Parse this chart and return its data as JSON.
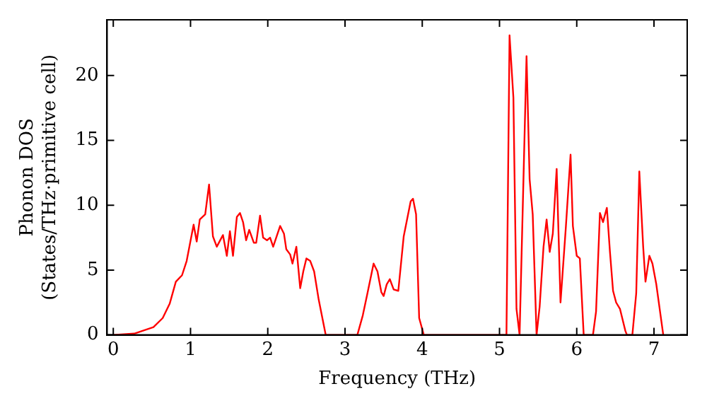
{
  "chart_data": {
    "type": "line",
    "xlabel": "Frequency (THz)",
    "ylabel": "Phonon DOS\n(States/THz·primitive cell)",
    "grid": false,
    "legend": false,
    "marker": "none",
    "line_style": "solid",
    "xlim": [
      -0.08,
      7.43
    ],
    "xticks": [
      0,
      1,
      2,
      3,
      4,
      5,
      6,
      7
    ],
    "ylim": [
      0,
      24.3
    ],
    "yticks": [
      0,
      5,
      10,
      15,
      20
    ],
    "series": [
      {
        "color": "#ff0000",
        "x": [
          0,
          0.27,
          0.52,
          0.64,
          0.73,
          0.81,
          0.89,
          0.95,
          1.04,
          1.08,
          1.12,
          1.19,
          1.24,
          1.29,
          1.34,
          1.42,
          1.47,
          1.51,
          1.55,
          1.6,
          1.64,
          1.68,
          1.72,
          1.76,
          1.82,
          1.85,
          1.9,
          1.94,
          1.99,
          2.03,
          2.07,
          2.16,
          2.21,
          2.24,
          2.29,
          2.32,
          2.37,
          2.42,
          2.46,
          2.5,
          2.55,
          2.6,
          2.66,
          2.75,
          3.16,
          3.23,
          3.29,
          3.37,
          3.42,
          3.47,
          3.5,
          3.54,
          3.58,
          3.63,
          3.69,
          3.76,
          3.85,
          3.88,
          3.92,
          3.96,
          4.02,
          5.09,
          5.13,
          5.18,
          5.22,
          5.26,
          5.35,
          5.39,
          5.43,
          5.48,
          5.52,
          5.57,
          5.61,
          5.65,
          5.69,
          5.74,
          5.79,
          5.86,
          5.92,
          5.95,
          6.0,
          6.04,
          6.09,
          6.21,
          6.25,
          6.3,
          6.34,
          6.39,
          6.43,
          6.47,
          6.51,
          6.56,
          6.63,
          6.65,
          6.72,
          6.77,
          6.81,
          6.86,
          6.89,
          6.94,
          6.98,
          7.03,
          7.12
        ],
        "values": [
          0,
          0.1,
          0.6,
          1.3,
          2.4,
          4.1,
          4.6,
          5.7,
          8.5,
          7.2,
          8.9,
          9.3,
          11.6,
          7.6,
          6.8,
          7.7,
          6.1,
          8.0,
          6.1,
          9.1,
          9.4,
          8.7,
          7.3,
          8.1,
          7.1,
          7.1,
          9.2,
          7.5,
          7.3,
          7.5,
          6.8,
          8.4,
          7.8,
          6.6,
          6.2,
          5.5,
          6.8,
          3.6,
          4.9,
          5.9,
          5.7,
          4.9,
          2.7,
          0,
          0,
          1.5,
          3.2,
          5.5,
          4.9,
          3.3,
          3.0,
          3.9,
          4.3,
          3.5,
          3.4,
          7.6,
          10.3,
          10.5,
          9.3,
          1.3,
          0,
          0,
          23.1,
          18.3,
          2.0,
          0,
          21.5,
          12.0,
          9.3,
          0,
          2.2,
          6.8,
          8.9,
          6.4,
          7.8,
          12.8,
          2.5,
          8.4,
          13.9,
          8.4,
          6.1,
          5.9,
          0,
          0,
          1.8,
          9.4,
          8.7,
          9.8,
          6.4,
          3.4,
          2.5,
          2.0,
          0.3,
          0,
          0,
          3.2,
          12.6,
          6.8,
          4.1,
          6.1,
          5.5,
          3.9,
          0
        ]
      }
    ]
  }
}
